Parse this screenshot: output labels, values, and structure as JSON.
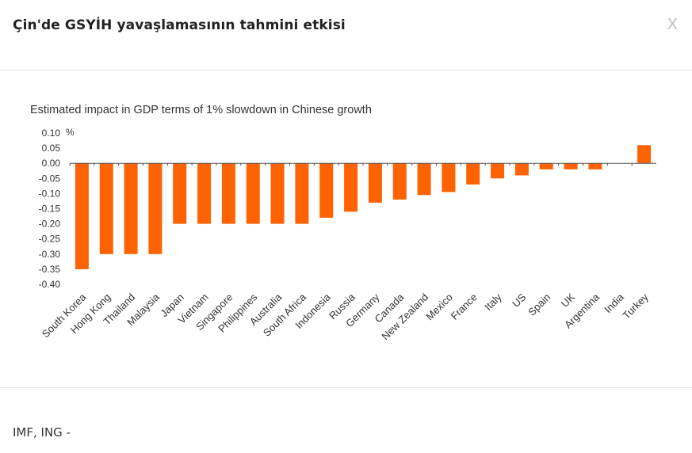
{
  "dialog": {
    "title": "Çin'de GSYİH yavaşlamasının tahmini etkisi",
    "close_label": "X",
    "source": "IMF, ING -"
  },
  "colors": {
    "bar": "#ff6200",
    "axis": "#555555",
    "text": "#333333"
  },
  "chart_data": {
    "type": "bar",
    "title": "Estimated impact in GDP terms of 1% slowdown in Chinese growth",
    "unit_label": "%",
    "xlabel": "",
    "ylabel": "",
    "ylim": [
      -0.4,
      0.1
    ],
    "yticks": [
      "0.10",
      "0.05",
      "0.00",
      "-0.05",
      "-0.10",
      "-0.15",
      "-0.20",
      "-0.25",
      "-0.30",
      "-0.35",
      "-0.40"
    ],
    "ytick_values": [
      0.1,
      0.05,
      0.0,
      -0.05,
      -0.1,
      -0.15,
      -0.2,
      -0.25,
      -0.3,
      -0.35,
      -0.4
    ],
    "grid": false,
    "categories": [
      "South Korea",
      "Hong Kong",
      "Thailand",
      "Malaysia",
      "Japan",
      "Vietnam",
      "Singapore",
      "Philippines",
      "Australia",
      "South Africa",
      "Indonesia",
      "Russia",
      "Germany",
      "Canada",
      "New Zealand",
      "Mexico",
      "France",
      "Italy",
      "US",
      "Spain",
      "UK",
      "Argentina",
      "India",
      "Turkey"
    ],
    "values": [
      -0.35,
      -0.3,
      -0.3,
      -0.3,
      -0.2,
      -0.2,
      -0.2,
      -0.2,
      -0.2,
      -0.2,
      -0.18,
      -0.16,
      -0.13,
      -0.12,
      -0.105,
      -0.095,
      -0.07,
      -0.05,
      -0.04,
      -0.02,
      -0.02,
      -0.02,
      0.0,
      0.06
    ]
  }
}
